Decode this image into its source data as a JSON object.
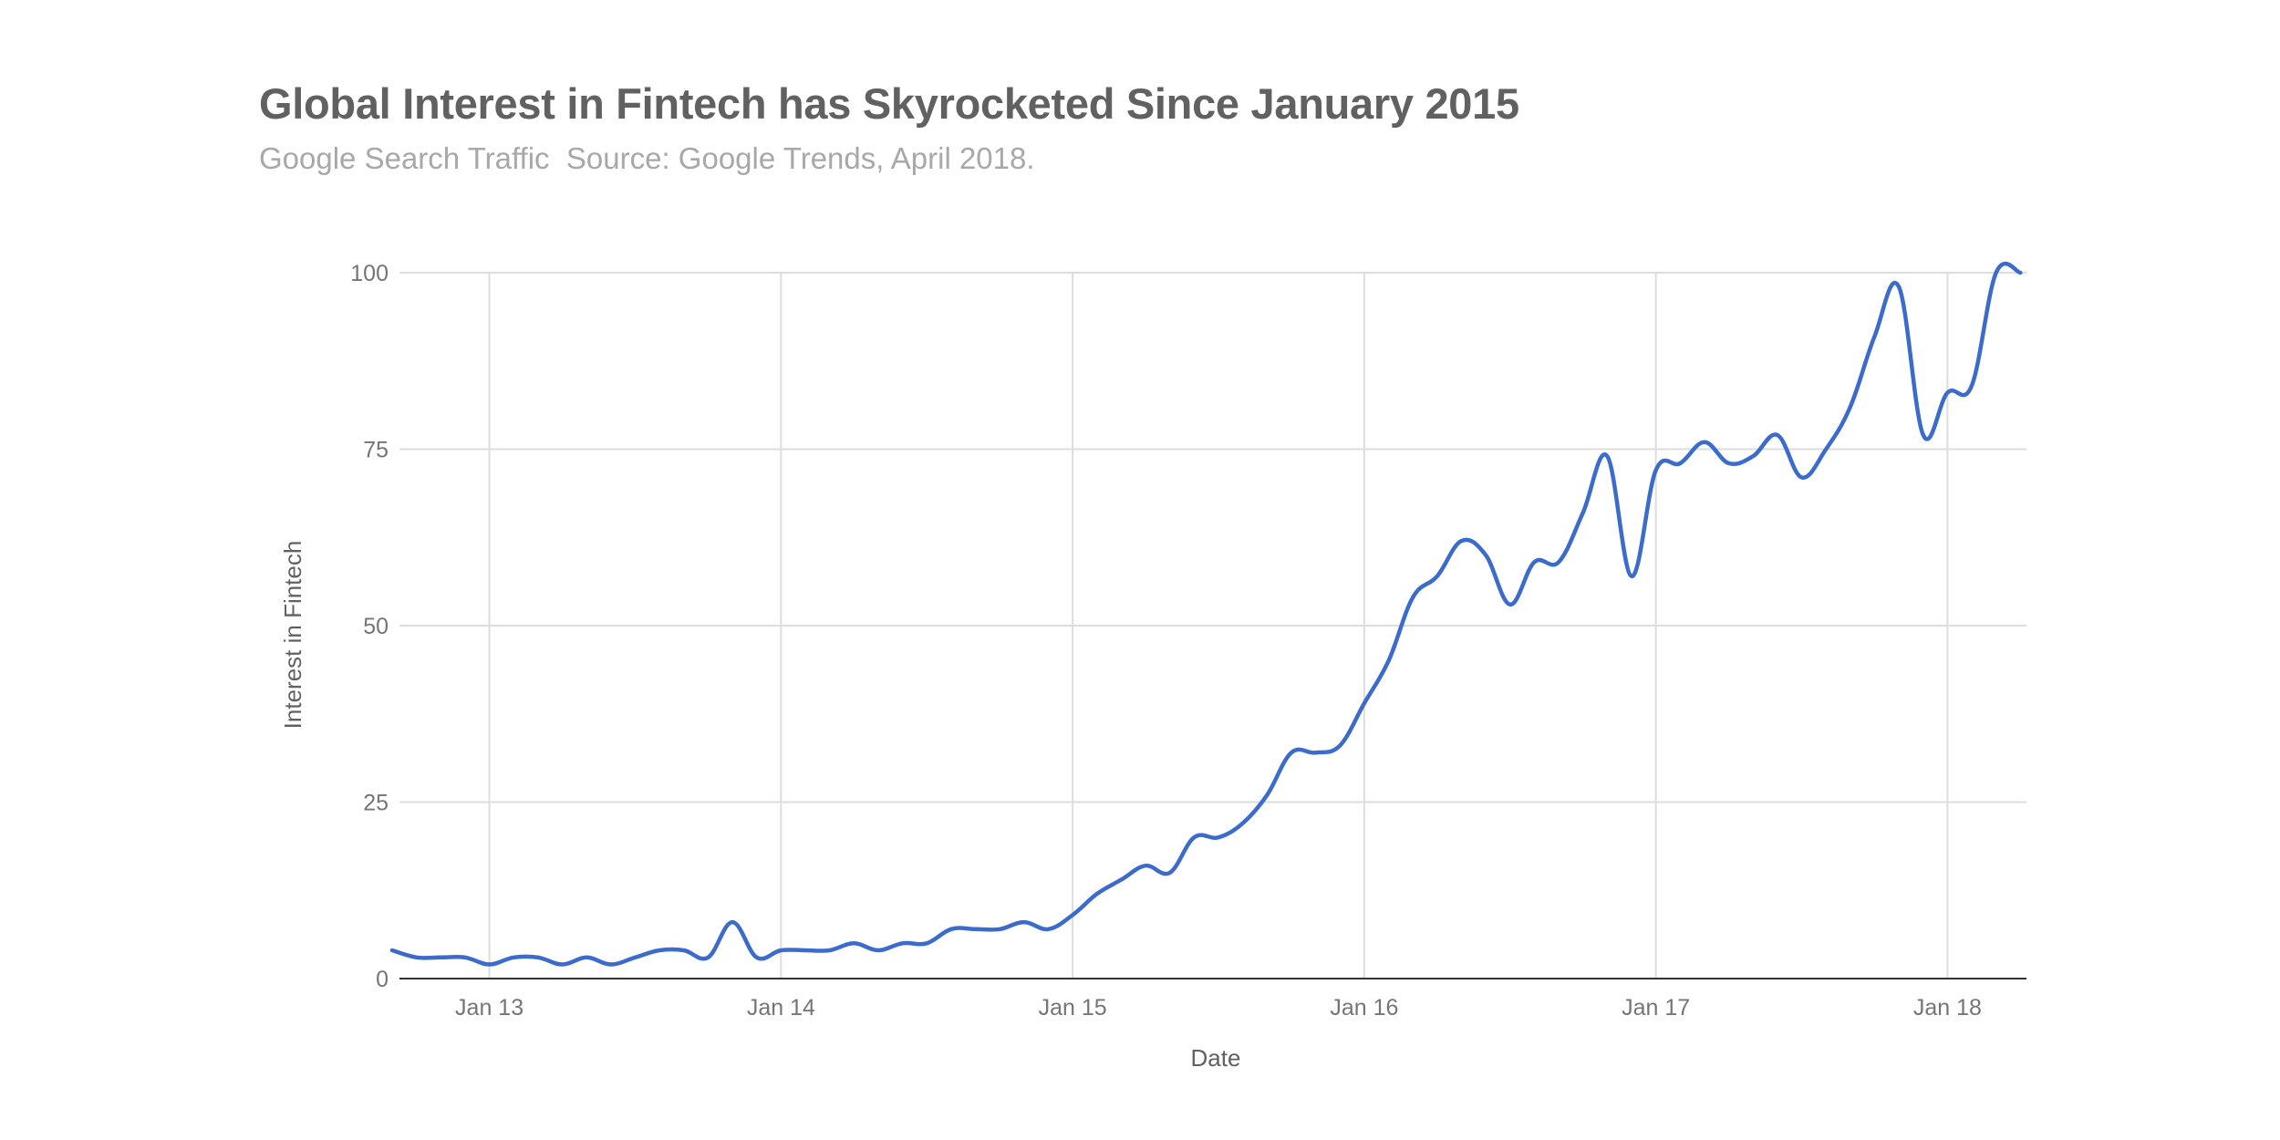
{
  "chart_data": {
    "type": "line",
    "title": "Global Interest in Fintech has Skyrocketed Since January 2015",
    "subtitle": "Google Search Traffic  Source: Google Trends, April 2018.",
    "xlabel": "Date",
    "ylabel": "Interest in Fintech",
    "ylim": [
      0,
      100
    ],
    "yticks": [
      0,
      25,
      50,
      75,
      100
    ],
    "xlim": [
      "2012-09",
      "2018-04"
    ],
    "xticks": [
      {
        "label": "Jan 13",
        "date": "2013-01"
      },
      {
        "label": "Jan 14",
        "date": "2014-01"
      },
      {
        "label": "Jan 15",
        "date": "2015-01"
      },
      {
        "label": "Jan 16",
        "date": "2016-01"
      },
      {
        "label": "Jan 17",
        "date": "2017-01"
      },
      {
        "label": "Jan 18",
        "date": "2018-01"
      }
    ],
    "grid": true,
    "legend": "none",
    "colors": {
      "line": "#3c6ccb",
      "grid": "#dddddd",
      "baseline": "#333333"
    },
    "series": [
      {
        "x": [
          "2012-09",
          "2012-10",
          "2012-11",
          "2012-12",
          "2013-01",
          "2013-02",
          "2013-03",
          "2013-04",
          "2013-05",
          "2013-06",
          "2013-07",
          "2013-08",
          "2013-09",
          "2013-10",
          "2013-11",
          "2013-12",
          "2014-01",
          "2014-02",
          "2014-03",
          "2014-04",
          "2014-05",
          "2014-06",
          "2014-07",
          "2014-08",
          "2014-09",
          "2014-10",
          "2014-11",
          "2014-12",
          "2015-01",
          "2015-02",
          "2015-03",
          "2015-04",
          "2015-05",
          "2015-06",
          "2015-07",
          "2015-08",
          "2015-09",
          "2015-10",
          "2015-11",
          "2015-12",
          "2016-01",
          "2016-02",
          "2016-03",
          "2016-04",
          "2016-05",
          "2016-06",
          "2016-07",
          "2016-08",
          "2016-09",
          "2016-10",
          "2016-11",
          "2016-12",
          "2017-01",
          "2017-02",
          "2017-03",
          "2017-04",
          "2017-05",
          "2017-06",
          "2017-07",
          "2017-08",
          "2017-09",
          "2017-10",
          "2017-11",
          "2017-12",
          "2018-01",
          "2018-02",
          "2018-03",
          "2018-04"
        ],
        "values": [
          4,
          3,
          3,
          3,
          2,
          3,
          3,
          2,
          3,
          2,
          3,
          4,
          4,
          3,
          8,
          3,
          4,
          4,
          4,
          5,
          4,
          5,
          5,
          7,
          7,
          7,
          8,
          7,
          9,
          12,
          14,
          16,
          15,
          20,
          20,
          22,
          26,
          32,
          32,
          33,
          39,
          45,
          54,
          57,
          62,
          60,
          53,
          59,
          59,
          66,
          74,
          57,
          72,
          73,
          76,
          73,
          74,
          77,
          71,
          75,
          81,
          91,
          98,
          77,
          83,
          84,
          100,
          100
        ]
      }
    ]
  }
}
